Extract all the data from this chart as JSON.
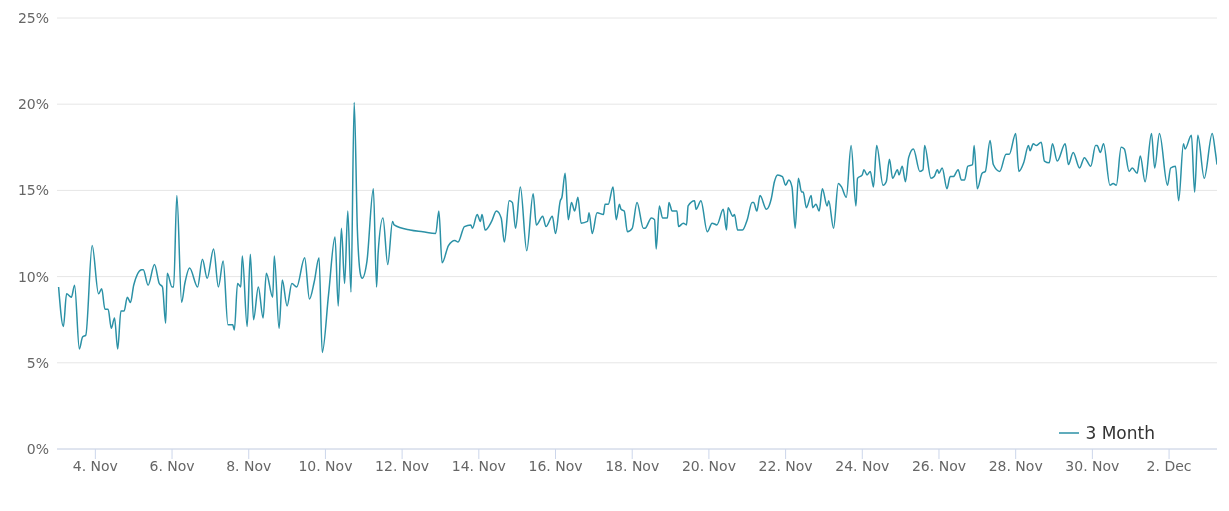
{
  "chart_data": {
    "type": "line",
    "xlim": [
      "--11-03T00:00",
      "--12-03T06:00"
    ],
    "xticks": [
      {
        "value": "--11-04",
        "label": "4. Nov"
      },
      {
        "value": "--11-06",
        "label": "6. Nov"
      },
      {
        "value": "--11-08",
        "label": "8. Nov"
      },
      {
        "value": "--11-10",
        "label": "10. Nov"
      },
      {
        "value": "--11-12",
        "label": "12. Nov"
      },
      {
        "value": "--11-14",
        "label": "14. Nov"
      },
      {
        "value": "--11-16",
        "label": "16. Nov"
      },
      {
        "value": "--11-18",
        "label": "18. Nov"
      },
      {
        "value": "--11-20",
        "label": "20. Nov"
      },
      {
        "value": "--11-22",
        "label": "22. Nov"
      },
      {
        "value": "--11-24",
        "label": "24. Nov"
      },
      {
        "value": "--11-26",
        "label": "26. Nov"
      },
      {
        "value": "--11-28",
        "label": "28. Nov"
      },
      {
        "value": "--11-30",
        "label": "30. Nov"
      },
      {
        "value": "--12-02",
        "label": "2. Dec"
      }
    ],
    "ylim": [
      0,
      25
    ],
    "yticks": [
      {
        "value": 0,
        "label": "0%"
      },
      {
        "value": 5,
        "label": "5%"
      },
      {
        "value": 10,
        "label": "10%"
      },
      {
        "value": 15,
        "label": "15%"
      },
      {
        "value": 20,
        "label": "20%"
      },
      {
        "value": 25,
        "label": "25%"
      }
    ],
    "grid": "y",
    "legend": "bottom right",
    "marker": "none",
    "line_style": "solid",
    "series": [
      {
        "name": "3 Month",
        "color": "#2b91a6",
        "x": [
          "--11-03T01:00",
          "--11-03T04:00",
          "--11-03T06:00",
          "--11-03T09:00",
          "--11-03T11:00",
          "--11-03T14:00",
          "--11-03T16:00",
          "--11-03T18:00",
          "--11-03T22:00",
          "--11-04T02:00",
          "--11-04T04:00",
          "--11-04T06:00",
          "--11-04T08:00",
          "--11-04T10:00",
          "--11-04T12:00",
          "--11-04T14:00",
          "--11-04T16:00",
          "--11-04T18:00",
          "--11-04T20:00",
          "--11-04T22:00",
          "--11-05T00:00",
          "--11-05T05:00",
          "--11-05T06:00",
          "--11-05T09:00",
          "--11-05T13:00",
          "--11-05T16:00",
          "--11-05T18:00",
          "--11-05T20:00",
          "--11-05T21:00",
          "--11-06T00:00",
          "--11-06T01:00",
          "--11-06T03:00",
          "--11-06T06:00",
          "--11-06T08:00",
          "--11-06T11:00",
          "--11-06T16:00",
          "--11-06T19:00",
          "--11-06T22:00",
          "--11-07T02:00",
          "--11-07T05:00",
          "--11-07T08:00",
          "--11-07T11:00",
          "--11-07T14:00",
          "--11-07T15:00",
          "--11-07T17:00",
          "--11-07T19:00",
          "--11-07T20:00",
          "--11-07T23:00",
          "--11-08T01:00",
          "--11-08T03:00",
          "--11-08T06:00",
          "--11-08T09:00",
          "--11-08T11:00",
          "--11-08T15:00",
          "--11-08T16:00",
          "--11-08T19:00",
          "--11-08T21:00",
          "--11-09T00:00",
          "--11-09T03:00",
          "--11-09T06:00",
          "--11-09T11:00",
          "--11-09T14:00",
          "--11-09T17:00",
          "--11-09T20:00",
          "--11-09T22:00",
          "--11-10T02:00",
          "--11-10T06:00",
          "--11-10T08:00",
          "--11-10T10:00",
          "--11-10T12:00",
          "--11-10T14:00",
          "--11-10T16:00",
          "--11-10T18:00",
          "--11-10T20:00",
          "--11-10T22:00",
          "--11-10T23:00",
          "--11-11T02:00",
          "--11-11T06:00",
          "--11-11T08:00",
          "--11-11T09:00",
          "--11-11T12:00",
          "--11-11T15:00",
          "--11-11T18:00",
          "--11-11T19:00",
          "--11-12T05:00",
          "--11-12T13:00",
          "--11-12T21:00",
          "--11-12T23:00",
          "--11-13T01:00",
          "--11-13T05:00",
          "--11-13T09:00",
          "--11-13T11:00",
          "--11-13T15:00",
          "--11-13T19:00",
          "--11-13T20:00",
          "--11-13T23:00",
          "--11-14T01:00",
          "--11-14T02:00",
          "--11-14T04:00",
          "--11-14T08:00",
          "--11-14T11:00",
          "--11-14T14:00",
          "--11-14T16:00",
          "--11-14T19:00",
          "--11-14T21:00",
          "--11-14T23:00",
          "--11-15T02:00",
          "--11-15T06:00",
          "--11-15T10:00",
          "--11-15T12:00",
          "--11-15T16:00",
          "--11-15T18:00",
          "--11-15T22:00",
          "--11-16T00:00",
          "--11-16T03:00",
          "--11-16T04:00",
          "--11-16T06:00",
          "--11-16T08:00",
          "--11-16T10:00",
          "--11-16T12:00",
          "--11-16T14:00",
          "--11-16T16:00",
          "--11-16T20:00",
          "--11-16T21:00",
          "--11-16T23:00",
          "--11-17T02:00",
          "--11-17T06:00",
          "--11-17T07:00",
          "--11-17T09:00",
          "--11-17T12:00",
          "--11-17T14:00",
          "--11-17T16:00",
          "--11-17T17:00",
          "--11-17T19:00",
          "--11-17T21:00",
          "--11-18T00:00",
          "--11-18T03:00",
          "--11-18T07:00",
          "--11-18T08:00",
          "--11-18T12:00",
          "--11-18T14:00",
          "--11-18T15:00",
          "--11-18T17:00",
          "--11-18T19:00",
          "--11-18T22:00",
          "--11-18T23:00",
          "--11-19T01:00",
          "--11-19T04:00",
          "--11-19T05:00",
          "--11-19T08:00",
          "--11-19T10:00",
          "--11-19T11:00",
          "--11-19T15:00",
          "--11-19T16:00",
          "--11-19T19:00",
          "--11-19T23:00",
          "--11-20T02:00",
          "--11-20T05:00",
          "--11-20T09:00",
          "--11-20T11:00",
          "--11-20T12:00",
          "--11-20T15:00",
          "--11-20T16:00",
          "--11-20T18:00",
          "--11-20T21:00",
          "--11-21T00:00",
          "--11-21T03:00",
          "--11-21T04:00",
          "--11-21T06:00",
          "--11-21T08:00",
          "--11-21T12:00",
          "--11-21T15:00",
          "--11-21T17:00",
          "--11-21T19:00",
          "--11-21T22:00",
          "--11-22T00:00",
          "--11-22T02:00",
          "--11-22T04:00",
          "--11-22T06:00",
          "--11-22T08:00",
          "--11-22T10:00",
          "--11-22T11:00",
          "--11-22T13:00",
          "--11-22T16:00",
          "--11-22T17:00",
          "--11-22T19:00",
          "--11-22T21:00",
          "--11-22T23:00",
          "--11-23T02:00",
          "--11-23T03:00",
          "--11-23T06:00",
          "--11-23T09:00",
          "--11-23T11:00",
          "--11-23T14:00",
          "--11-23T17:00",
          "--11-23T20:00",
          "--11-23T21:00",
          "--11-24T00:00",
          "--11-24T01:00",
          "--11-24T03:00",
          "--11-24T05:00",
          "--11-24T07:00",
          "--11-24T09:00",
          "--11-24T13:00",
          "--11-24T15:00",
          "--11-24T17:00",
          "--11-24T19:00",
          "--11-24T22:00",
          "--11-24T23:00",
          "--11-25T01:00",
          "--11-25T03:00",
          "--11-25T05:00",
          "--11-25T08:00",
          "--11-25T12:00",
          "--11-25T14:00",
          "--11-25T15:00",
          "--11-25T19:00",
          "--11-25T21:00",
          "--11-25T23:00",
          "--11-26T00:00",
          "--11-26T02:00",
          "--11-26T05:00",
          "--11-26T07:00",
          "--11-26T09:00",
          "--11-26T12:00",
          "--11-26T14:00",
          "--11-26T16:00",
          "--11-26T18:00",
          "--11-26T21:00",
          "--11-26T22:00",
          "--11-27T00:00",
          "--11-27T03:00",
          "--11-27T05:00",
          "--11-27T08:00",
          "--11-27T10:00",
          "--11-27T14:00",
          "--11-27T18:00",
          "--11-27T20:00",
          "--11-28T00:00",
          "--11-28T02:00",
          "--11-28T05:00",
          "--11-28T08:00",
          "--11-28T09:00",
          "--11-28T11:00",
          "--11-28T13:00",
          "--11-28T16:00",
          "--11-28T18:00",
          "--11-28T21:00",
          "--11-28T23:00",
          "--11-29T02:00",
          "--11-29T07:00",
          "--11-29T09:00",
          "--11-29T12:00",
          "--11-29T16:00",
          "--11-29T19:00",
          "--11-29T23:00",
          "--11-30T02:00",
          "--11-30T03:00",
          "--11-30T05:00",
          "--11-30T07:00",
          "--11-30T11:00",
          "--11-30T13:00",
          "--11-30T15:00",
          "--11-30T18:00",
          "--11-30T20:00",
          "--11-30T23:00",
          "--12-01T01:00",
          "--12-01T04:00",
          "--12-01T06:00",
          "--12-01T09:00",
          "--12-01T13:00",
          "--12-01T15:00",
          "--12-01T18:00",
          "--12-01T23:00",
          "--12-02T01:00",
          "--12-02T04:00",
          "--12-02T06:00",
          "--12-02T09:00",
          "--12-02T10:00",
          "--12-02T14:00",
          "--12-02T16:00",
          "--12-02T18:00",
          "--12-02T22:00",
          "--12-03T03:00",
          "--12-03T05:00",
          "--12-03T06:00"
        ],
        "values": [
          9.4,
          7.1,
          9.0,
          8.8,
          9.5,
          5.8,
          6.5,
          6.6,
          11.8,
          9.0,
          9.3,
          8.1,
          8.1,
          7.0,
          7.6,
          5.8,
          8.0,
          8.0,
          8.8,
          8.5,
          9.5,
          10.4,
          10.4,
          9.5,
          10.7,
          9.6,
          9.4,
          7.3,
          10.2,
          9.4,
          9.4,
          14.7,
          8.5,
          9.6,
          10.5,
          9.4,
          11.0,
          9.9,
          11.6,
          9.4,
          10.9,
          7.2,
          7.2,
          6.9,
          9.6,
          9.4,
          11.2,
          7.1,
          11.3,
          7.5,
          9.4,
          7.6,
          10.2,
          8.8,
          11.2,
          7.0,
          9.8,
          8.3,
          9.6,
          9.4,
          11.1,
          8.7,
          9.7,
          11.1,
          5.6,
          9.0,
          12.3,
          8.3,
          12.8,
          9.6,
          13.8,
          9.1,
          20.1,
          12.7,
          10.1,
          9.9,
          10.9,
          15.1,
          9.4,
          11.4,
          13.4,
          10.7,
          13.2,
          13.0,
          12.7,
          12.6,
          12.5,
          13.8,
          10.8,
          11.8,
          12.1,
          12.0,
          12.9,
          13.0,
          12.8,
          13.6,
          13.2,
          13.6,
          12.7,
          13.2,
          13.8,
          13.4,
          12.0,
          14.4,
          14.3,
          12.8,
          15.2,
          11.5,
          14.8,
          13.0,
          13.5,
          12.9,
          13.5,
          12.5,
          14.4,
          14.6,
          16.0,
          13.3,
          14.3,
          13.8,
          14.6,
          13.1,
          13.2,
          13.7,
          12.5,
          13.7,
          13.6,
          14.2,
          14.2,
          15.2,
          13.3,
          14.2,
          13.9,
          13.8,
          12.6,
          12.8,
          14.3,
          12.8,
          12.8,
          13.4,
          13.3,
          11.6,
          14.1,
          13.4,
          13.4,
          14.3,
          13.8,
          13.8,
          12.9,
          13.1,
          13.0,
          14.1,
          14.4,
          13.9,
          14.4,
          12.6,
          13.1,
          13.0,
          13.9,
          12.7,
          14.0,
          13.5,
          13.6,
          12.7,
          12.7,
          13.3,
          14.3,
          14.3,
          13.8,
          14.7,
          13.9,
          14.5,
          15.5,
          15.9,
          15.8,
          15.3,
          15.6,
          15.2,
          12.8,
          15.7,
          14.9,
          14.9,
          14.0,
          14.7,
          14.0,
          14.2,
          13.8,
          15.1,
          14.1,
          14.4,
          12.8,
          15.4,
          15.2,
          14.6,
          17.6,
          14.1,
          15.7,
          15.9,
          16.2,
          15.9,
          16.1,
          15.2,
          17.6,
          15.3,
          15.5,
          16.8,
          15.7,
          16.2,
          15.9,
          16.4,
          15.5,
          16.9,
          17.4,
          16.1,
          16.2,
          17.6,
          15.7,
          15.8,
          16.2,
          16.0,
          16.3,
          15.1,
          15.8,
          15.8,
          16.2,
          15.6,
          15.6,
          16.4,
          16.5,
          17.6,
          15.1,
          16.0,
          16.1,
          17.9,
          16.5,
          16.1,
          17.1,
          17.1,
          18.3,
          16.1,
          16.6,
          17.6,
          17.3,
          17.7,
          17.6,
          17.8,
          16.7,
          16.6,
          17.7,
          16.7,
          17.7,
          16.5,
          17.2,
          16.3,
          16.9,
          16.4,
          17.6,
          17.6,
          17.2,
          17.7,
          15.3,
          15.4,
          15.3,
          17.5,
          17.4,
          16.1,
          16.3,
          16.0,
          17.0,
          15.5,
          18.3,
          16.3,
          18.3,
          15.3,
          16.3,
          16.4,
          14.4,
          17.7,
          17.4,
          18.2,
          14.9,
          18.2,
          15.7,
          18.3,
          17.2,
          16.5
        ]
      }
    ]
  }
}
